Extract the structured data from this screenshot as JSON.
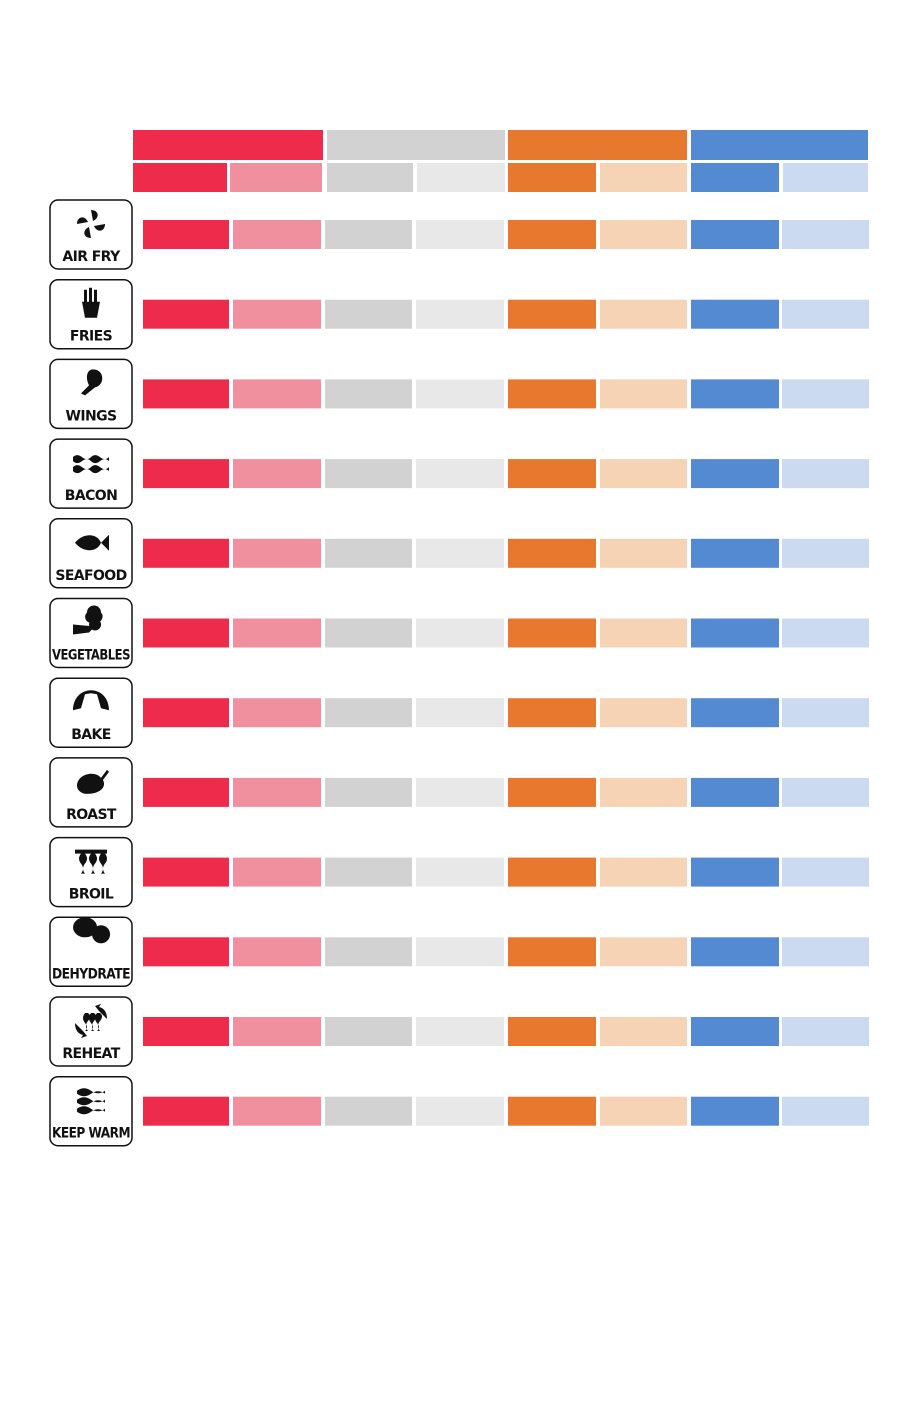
{
  "functions": [
    {
      "label": "AIR FRY"
    },
    {
      "label": "FRIES"
    },
    {
      "label": "WINGS"
    },
    {
      "label": "BACON"
    },
    {
      "label": "SEAFOOD"
    },
    {
      "label": "VEGETABLES"
    },
    {
      "label": "BAKE"
    },
    {
      "label": "ROAST"
    },
    {
      "label": "BROIL"
    },
    {
      "label": "DEHYDRATE"
    },
    {
      "label": "REHEAT"
    },
    {
      "label": "KEEP WARM"
    }
  ]
}
